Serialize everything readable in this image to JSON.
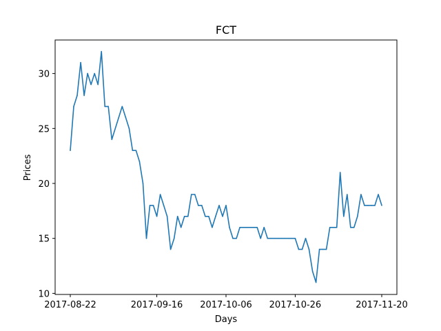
{
  "chart_data": {
    "type": "line",
    "title": "FCT",
    "xlabel": "Days",
    "ylabel": "Prices",
    "x_start": "2017-08-22",
    "x_end": "2017-11-20",
    "xlim": [
      "2017-08-22",
      "2017-11-20"
    ],
    "ylim": [
      10,
      32
    ],
    "xticks": [
      "2017-08-22",
      "2017-09-16",
      "2017-10-06",
      "2017-10-26",
      "2017-11-20"
    ],
    "yticks": [
      10,
      15,
      20,
      25,
      30
    ],
    "grid": false,
    "color": "#1f77b4",
    "series": [
      {
        "x": [
          "2017-08-22",
          "2017-08-23",
          "2017-08-24",
          "2017-08-25",
          "2017-08-26",
          "2017-08-27",
          "2017-08-28",
          "2017-08-29",
          "2017-08-30",
          "2017-08-31",
          "2017-09-01",
          "2017-09-02",
          "2017-09-03",
          "2017-09-06",
          "2017-09-07",
          "2017-09-08",
          "2017-09-09",
          "2017-09-10",
          "2017-09-11",
          "2017-09-12",
          "2017-09-13",
          "2017-09-14",
          "2017-09-15",
          "2017-09-16",
          "2017-09-17",
          "2017-09-18",
          "2017-09-19",
          "2017-09-20",
          "2017-09-21",
          "2017-09-22",
          "2017-09-23",
          "2017-09-24",
          "2017-09-25",
          "2017-09-26",
          "2017-09-27",
          "2017-09-28",
          "2017-09-29",
          "2017-09-30",
          "2017-10-01",
          "2017-10-02",
          "2017-10-03",
          "2017-10-04",
          "2017-10-05",
          "2017-10-06",
          "2017-10-07",
          "2017-10-08",
          "2017-10-09",
          "2017-10-10",
          "2017-10-11",
          "2017-10-12",
          "2017-10-13",
          "2017-10-14",
          "2017-10-15",
          "2017-10-16",
          "2017-10-17",
          "2017-10-18",
          "2017-10-19",
          "2017-10-20",
          "2017-10-21",
          "2017-10-22",
          "2017-10-23",
          "2017-10-24",
          "2017-10-25",
          "2017-10-26",
          "2017-10-27",
          "2017-10-28",
          "2017-10-29",
          "2017-10-30",
          "2017-10-31",
          "2017-11-01",
          "2017-11-02",
          "2017-11-03",
          "2017-11-04",
          "2017-11-05",
          "2017-11-06",
          "2017-11-07",
          "2017-11-08",
          "2017-11-09",
          "2017-11-10",
          "2017-11-11",
          "2017-11-12",
          "2017-11-13",
          "2017-11-14",
          "2017-11-15",
          "2017-11-16",
          "2017-11-17",
          "2017-11-18",
          "2017-11-19",
          "2017-11-20"
        ],
        "y": [
          23,
          27,
          28,
          31,
          28,
          30,
          29,
          30,
          29,
          32,
          27,
          27,
          24,
          27,
          26,
          25,
          23,
          23,
          22,
          20,
          15,
          18,
          18,
          17,
          19,
          18,
          17,
          14,
          15,
          17,
          16,
          17,
          17,
          19,
          19,
          18,
          18,
          17,
          17,
          16,
          17,
          18,
          17,
          18,
          16,
          15,
          15,
          16,
          16,
          16,
          16,
          16,
          16,
          15,
          16,
          15,
          15,
          15,
          15,
          15,
          15,
          15,
          15,
          15,
          14,
          14,
          15,
          14,
          12,
          11,
          14,
          14,
          14,
          16,
          16,
          16,
          21,
          17,
          19,
          16,
          16,
          17,
          19,
          18,
          18,
          18,
          18,
          19,
          18
        ]
      }
    ]
  }
}
